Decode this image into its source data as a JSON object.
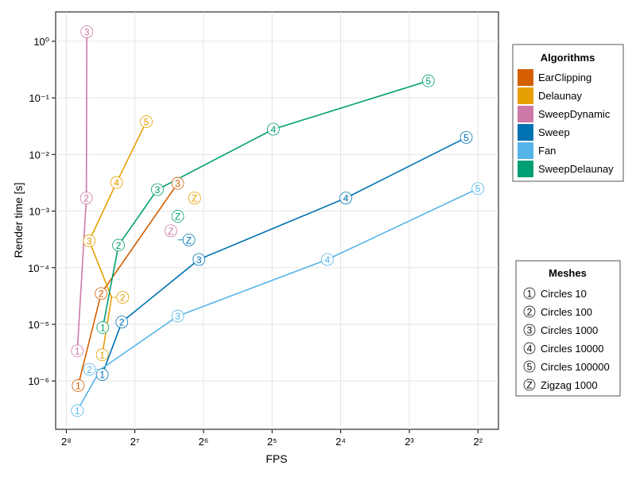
{
  "chart_data": {
    "type": "line",
    "xlabel": "FPS",
    "ylabel": "Render time [s]",
    "x_scale": "log2",
    "x_reversed": true,
    "y_scale": "log10",
    "xlim": [
      285,
      3.25
    ],
    "ylim": [
      1.4e-07,
      3.3
    ],
    "grid": true,
    "x_ticks": [
      {
        "value": 256,
        "label": "2⁸"
      },
      {
        "value": 128,
        "label": "2⁷"
      },
      {
        "value": 64,
        "label": "2⁶"
      },
      {
        "value": 32,
        "label": "2⁵"
      },
      {
        "value": 16,
        "label": "2⁴"
      },
      {
        "value": 8,
        "label": "2³"
      },
      {
        "value": 4,
        "label": "2²"
      }
    ],
    "y_ticks": [
      {
        "value": 1,
        "label": "10⁰"
      },
      {
        "value": 0.1,
        "label": "10⁻¹"
      },
      {
        "value": 0.01,
        "label": "10⁻²"
      },
      {
        "value": 0.001,
        "label": "10⁻³"
      },
      {
        "value": 0.0001,
        "label": "10⁻⁴"
      },
      {
        "value": 1e-05,
        "label": "10⁻⁵"
      },
      {
        "value": 1e-06,
        "label": "10⁻⁶"
      }
    ],
    "legend_algorithms": {
      "title": "Algorithms",
      "placement": "right-top",
      "entries": [
        {
          "name": "EarClipping",
          "color": "#d55e00"
        },
        {
          "name": "Delaunay",
          "color": "#e69f00"
        },
        {
          "name": "SweepDynamic",
          "color": "#cc79a7"
        },
        {
          "name": "Sweep",
          "color": "#0072b2"
        },
        {
          "name": "Fan",
          "color": "#56b4e9"
        },
        {
          "name": "SweepDelaunay",
          "color": "#009e73"
        }
      ]
    },
    "legend_meshes": {
      "title": "Meshes",
      "placement": "right-bottom",
      "entries": [
        {
          "marker": "1",
          "name": "Circles 10"
        },
        {
          "marker": "2",
          "name": "Circles 100"
        },
        {
          "marker": "3",
          "name": "Circles 1000"
        },
        {
          "marker": "4",
          "name": "Circles 10000"
        },
        {
          "marker": "5",
          "name": "Circles 100000"
        },
        {
          "marker": "Z",
          "name": "Zigzag 1000"
        }
      ]
    },
    "series": [
      {
        "name": "EarClipping",
        "color": "#d55e00",
        "points": [
          {
            "mesh": "1",
            "fps": 227,
            "time": 8.3e-07
          },
          {
            "mesh": "2",
            "fps": 180,
            "time": 3.5e-05
          },
          {
            "mesh": "3",
            "fps": 83,
            "time": 0.0031
          }
        ]
      },
      {
        "name": "Delaunay",
        "color": "#e69f00",
        "points": [
          {
            "mesh": "1",
            "fps": 178,
            "time": 2.9e-06
          },
          {
            "mesh": "2",
            "fps": 162,
            "time": 3e-05
          },
          {
            "mesh": "3",
            "fps": 203,
            "time": 0.0003
          },
          {
            "mesh": "4",
            "fps": 154,
            "time": 0.0032
          },
          {
            "mesh": "5",
            "fps": 114,
            "time": 0.038
          },
          {
            "mesh": "Z",
            "fps": 70,
            "time": 0.0017
          }
        ]
      },
      {
        "name": "SweepDynamic",
        "color": "#cc79a7",
        "points": [
          {
            "mesh": "1",
            "fps": 229,
            "time": 3.4e-06
          },
          {
            "mesh": "2",
            "fps": 209,
            "time": 0.0017
          },
          {
            "mesh": "3",
            "fps": 208,
            "time": 1.47
          },
          {
            "mesh": "Z",
            "fps": 89,
            "time": 0.00045
          }
        ]
      },
      {
        "name": "Sweep",
        "color": "#0072b2",
        "points": [
          {
            "mesh": "1",
            "fps": 178,
            "time": 1.3e-06
          },
          {
            "mesh": "2",
            "fps": 146,
            "time": 1.1e-05
          },
          {
            "mesh": "3",
            "fps": 67,
            "time": 0.00014
          },
          {
            "mesh": "4",
            "fps": 15.2,
            "time": 0.0017
          },
          {
            "mesh": "5",
            "fps": 4.5,
            "time": 0.02
          },
          {
            "mesh": "Z",
            "fps": 83,
            "time": 0.00031
          }
        ]
      },
      {
        "name": "Fan",
        "color": "#56b4e9",
        "points": [
          {
            "mesh": "1",
            "fps": 229,
            "time": 3e-07
          },
          {
            "mesh": "2",
            "fps": 181,
            "time": 1.6e-06
          },
          {
            "mesh": "3",
            "fps": 83,
            "time": 1.4e-05
          },
          {
            "mesh": "4",
            "fps": 18.3,
            "time": 0.00014
          },
          {
            "mesh": "5",
            "fps": 4.0,
            "time": 0.0025
          }
        ]
      },
      {
        "name": "SweepDelaunay",
        "color": "#009e73",
        "points": [
          {
            "mesh": "1",
            "fps": 177,
            "time": 8.8e-06
          },
          {
            "mesh": "2",
            "fps": 151,
            "time": 0.00025
          },
          {
            "mesh": "3",
            "fps": 102,
            "time": 0.0024
          },
          {
            "mesh": "4",
            "fps": 31.6,
            "time": 0.028
          },
          {
            "mesh": "5",
            "fps": 6.6,
            "time": 0.2
          },
          {
            "mesh": "Z",
            "fps": 83,
            "time": 0.00081
          }
        ]
      }
    ]
  }
}
